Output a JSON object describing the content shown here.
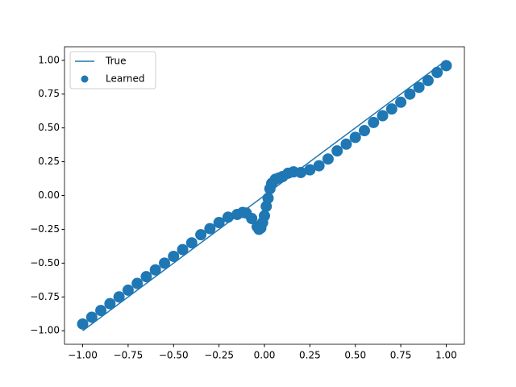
{
  "chart_data": {
    "type": "scatter",
    "legend": "upper left",
    "xlim": [
      -1.1,
      1.1
    ],
    "ylim": [
      -1.1,
      1.1
    ],
    "xticks": [
      {
        "value": -1,
        "label": "−1.00"
      },
      {
        "value": -0.75,
        "label": "−0.75"
      },
      {
        "value": -0.5,
        "label": "−0.50"
      },
      {
        "value": -0.25,
        "label": "−0.25"
      },
      {
        "value": 0,
        "label": "0.00"
      },
      {
        "value": 0.25,
        "label": "0.25"
      },
      {
        "value": 0.5,
        "label": "0.50"
      },
      {
        "value": 0.75,
        "label": "0.75"
      },
      {
        "value": 1,
        "label": "1.00"
      }
    ],
    "yticks": [
      {
        "value": -1,
        "label": "−1.00"
      },
      {
        "value": -0.75,
        "label": "−0.75"
      },
      {
        "value": -0.5,
        "label": "−0.50"
      },
      {
        "value": -0.25,
        "label": "−0.25"
      },
      {
        "value": 0,
        "label": "0.00"
      },
      {
        "value": 0.25,
        "label": "0.25"
      },
      {
        "value": 0.5,
        "label": "0.50"
      },
      {
        "value": 0.75,
        "label": "0.75"
      },
      {
        "value": 1,
        "label": "1.00"
      }
    ],
    "series": [
      {
        "name": "True",
        "kind": "line",
        "color": "#1f77b4",
        "x": [
          -1,
          1
        ],
        "values": [
          -1,
          1
        ]
      },
      {
        "name": "Learned",
        "kind": "points",
        "color": "#1f77b4",
        "x": [
          -1.0,
          -0.95,
          -0.9,
          -0.85,
          -0.8,
          -0.75,
          -0.7,
          -0.65,
          -0.6,
          -0.55,
          -0.5,
          -0.45,
          -0.4,
          -0.35,
          -0.3,
          -0.25,
          -0.2,
          -0.15,
          -0.12,
          -0.1,
          -0.07,
          -0.04,
          -0.03,
          -0.02,
          -0.01,
          0.0,
          0.01,
          0.02,
          0.03,
          0.04,
          0.06,
          0.08,
          0.1,
          0.13,
          0.16,
          0.2,
          0.25,
          0.3,
          0.35,
          0.4,
          0.45,
          0.5,
          0.55,
          0.6,
          0.65,
          0.7,
          0.75,
          0.8,
          0.85,
          0.9,
          0.95,
          1.0
        ],
        "values": [
          -0.95,
          -0.9,
          -0.85,
          -0.8,
          -0.75,
          -0.7,
          -0.65,
          -0.6,
          -0.55,
          -0.5,
          -0.45,
          -0.4,
          -0.35,
          -0.29,
          -0.245,
          -0.2,
          -0.16,
          -0.14,
          -0.125,
          -0.13,
          -0.17,
          -0.23,
          -0.25,
          -0.24,
          -0.2,
          -0.15,
          -0.08,
          -0.02,
          0.05,
          0.09,
          0.12,
          0.13,
          0.14,
          0.165,
          0.175,
          0.17,
          0.19,
          0.22,
          0.27,
          0.33,
          0.38,
          0.43,
          0.48,
          0.54,
          0.59,
          0.64,
          0.69,
          0.75,
          0.8,
          0.85,
          0.91,
          0.96
        ]
      }
    ]
  }
}
